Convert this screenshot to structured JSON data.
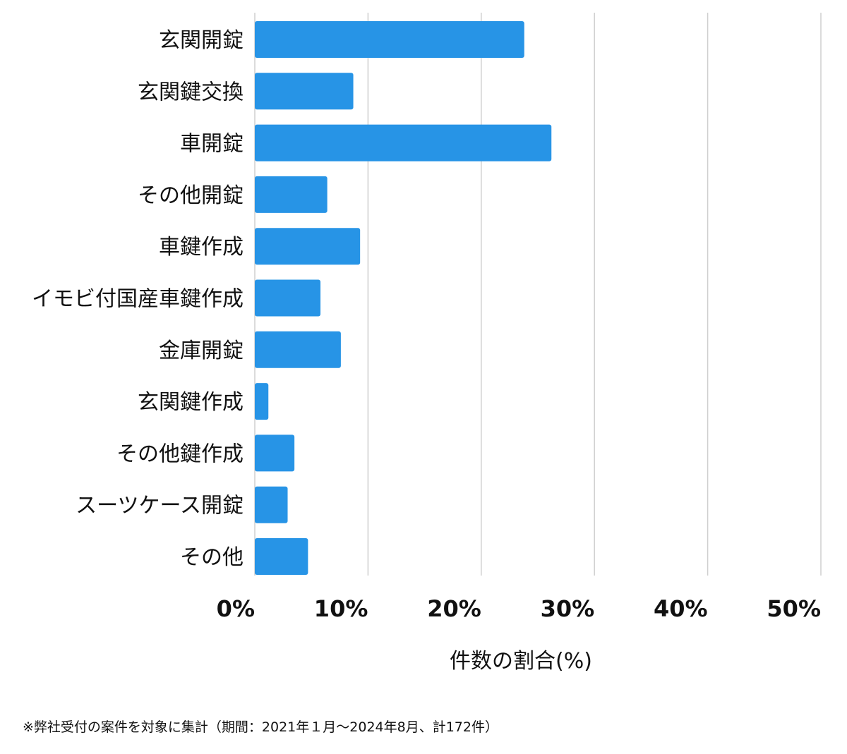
{
  "chart_data": {
    "type": "bar",
    "orientation": "horizontal",
    "categories": [
      "玄関開錠",
      "玄関鍵交換",
      "車開錠",
      "その他開錠",
      "車鍵作成",
      "イモビ付国産車鍵作成",
      "金庫開錠",
      "玄関鍵作成",
      "その他鍵作成",
      "スーツケース開錠",
      "その他"
    ],
    "values": [
      23.8,
      8.7,
      26.2,
      6.4,
      9.3,
      5.8,
      7.6,
      1.2,
      3.5,
      2.9,
      4.7
    ],
    "xlim": [
      0,
      50
    ],
    "xticks": [
      "0%",
      "10%",
      "20%",
      "30%",
      "40%",
      "50%"
    ],
    "xlabel": "件数の割合(%)",
    "ylabel": "",
    "title": "",
    "grid": true,
    "bar_color": "#2794e6"
  },
  "footnote": "※弊社受付の案件を対象に集計（期間：2021年１月〜2024年8月、計172件）"
}
